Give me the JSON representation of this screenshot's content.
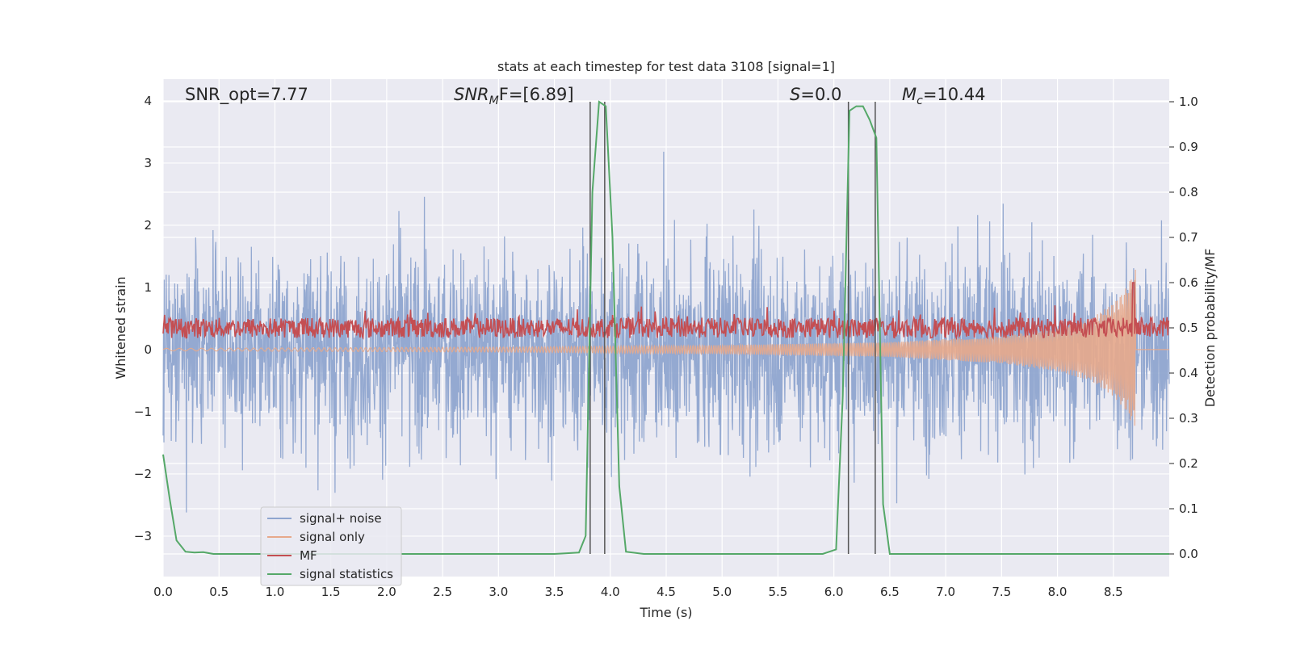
{
  "chart_data": {
    "type": "line",
    "title": "stats at each timestep for test data 3108 [signal=1]",
    "xlabel": "Time (s)",
    "ylabel_left": "Whitened strain",
    "ylabel_right": "Detection probability/MF",
    "xlim": [
      0.0,
      9.0
    ],
    "ylim_left": [
      -3.65,
      4.35
    ],
    "ylim_right": [
      -0.05,
      1.05
    ],
    "xticks": [
      0.0,
      0.5,
      1.0,
      1.5,
      2.0,
      2.5,
      3.0,
      3.5,
      4.0,
      4.5,
      5.0,
      5.5,
      6.0,
      6.5,
      7.0,
      7.5,
      8.0,
      8.5
    ],
    "xtick_labels": [
      "0.0",
      "0.5",
      "1.0",
      "1.5",
      "2.0",
      "2.5",
      "3.0",
      "3.5",
      "4.0",
      "4.5",
      "5.0",
      "5.5",
      "6.0",
      "6.5",
      "7.0",
      "7.5",
      "8.0",
      "8.5"
    ],
    "yticks_left": [
      -3,
      -2,
      -1,
      0,
      1,
      2,
      3,
      4
    ],
    "ytick_labels_left": [
      "−3",
      "−2",
      "−1",
      "0",
      "1",
      "2",
      "3",
      "4"
    ],
    "yticks_right": [
      0.0,
      0.1,
      0.2,
      0.3,
      0.4,
      0.5,
      0.6,
      0.7,
      0.8,
      0.9,
      1.0
    ],
    "ytick_labels_right": [
      "0.0",
      "0.1",
      "0.2",
      "0.3",
      "0.4",
      "0.5",
      "0.6",
      "0.7",
      "0.8",
      "0.9",
      "1.0"
    ],
    "grid": true,
    "legend_position": "lower-left",
    "annotations": {
      "snr_opt": "SNR_opt=7.77",
      "snr_mf_main": "SNR",
      "snr_mf_sub": "M",
      "snr_mf_tail": "F=[6.89]",
      "s_main": "S",
      "s_tail": "=0.0",
      "mc_main": "M",
      "mc_sub": "c",
      "mc_tail": "=10.44"
    },
    "vertical_lines_x": [
      3.82,
      3.95,
      6.13,
      6.37
    ],
    "series": [
      {
        "name": "signal+ noise",
        "color": "#8fa5cf",
        "axis": "left",
        "description_range": [
          -3.4,
          4.0
        ]
      },
      {
        "name": "signal only",
        "color": "#e7a98b",
        "axis": "left",
        "envelope_x": [
          0.0,
          3.0,
          5.0,
          6.5,
          7.5,
          8.0,
          8.3,
          8.5,
          8.6,
          8.7
        ],
        "envelope_amp": [
          0.02,
          0.04,
          0.07,
          0.12,
          0.22,
          0.35,
          0.5,
          0.75,
          0.95,
          1.3
        ]
      },
      {
        "name": "MF",
        "color": "#c44e52",
        "axis": "right",
        "baseline": 0.5,
        "spike_x": 8.68,
        "spike_y": 0.6
      },
      {
        "name": "signal statistics",
        "color": "#55a868",
        "axis": "right",
        "x": [
          0.0,
          0.06,
          0.12,
          0.2,
          0.28,
          0.36,
          0.45,
          0.6,
          0.8,
          1.0,
          2.0,
          3.0,
          3.5,
          3.72,
          3.78,
          3.84,
          3.9,
          3.96,
          4.02,
          4.08,
          4.14,
          4.3,
          5.0,
          5.9,
          6.02,
          6.08,
          6.14,
          6.2,
          6.26,
          6.32,
          6.38,
          6.44,
          6.5,
          6.56,
          7.0,
          8.0,
          9.0
        ],
        "y": [
          0.22,
          0.12,
          0.03,
          0.005,
          0.003,
          0.004,
          0.0,
          0.0,
          0.0,
          0.0,
          0.0,
          0.0,
          0.0,
          0.003,
          0.04,
          0.8,
          1.0,
          0.99,
          0.7,
          0.15,
          0.005,
          0.0,
          0.0,
          0.0,
          0.01,
          0.35,
          0.98,
          0.99,
          0.99,
          0.96,
          0.92,
          0.11,
          0.0,
          0.0,
          0.0,
          0.0,
          0.0
        ]
      }
    ]
  }
}
